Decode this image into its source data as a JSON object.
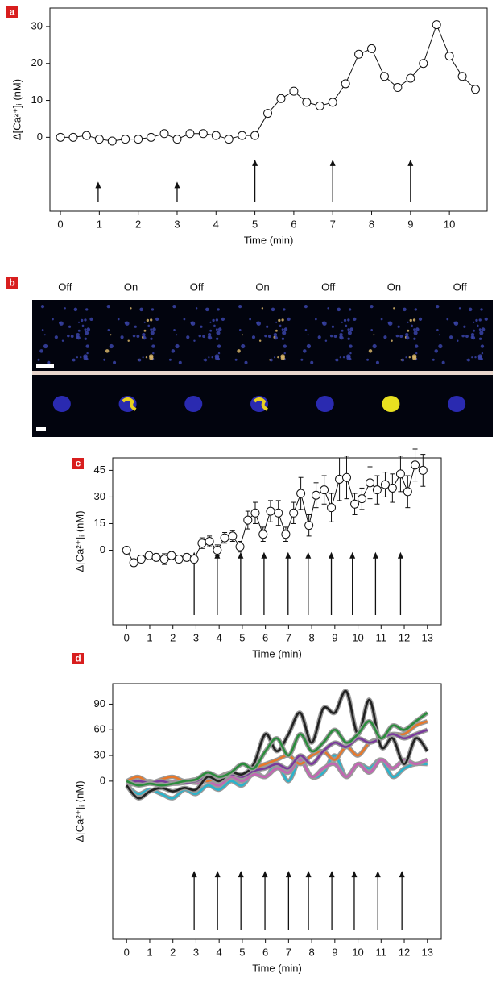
{
  "chart_data": [
    {
      "type": "line",
      "label": "a",
      "x_label": "Time (min)",
      "y_label": "Δ[Ca²⁺]ᵢ (nM)",
      "x": [
        0,
        0.33,
        0.67,
        1,
        1.33,
        1.67,
        2,
        2.33,
        2.67,
        3,
        3.33,
        3.67,
        4,
        4.33,
        4.67,
        5,
        5.33,
        5.67,
        6,
        6.33,
        6.67,
        7,
        7.33,
        7.67,
        8,
        8.33,
        8.67,
        9,
        9.33,
        9.67,
        10,
        10.33,
        10.67
      ],
      "values": [
        0,
        0,
        0.5,
        -0.5,
        -1,
        -0.5,
        -0.5,
        0,
        1,
        -0.5,
        1,
        1,
        0.5,
        -0.5,
        0.5,
        0.5,
        6.5,
        10.5,
        12.5,
        9.5,
        8.5,
        9.5,
        14.5,
        22.5,
        24,
        16.5,
        13.5,
        16,
        20,
        30.5,
        22,
        16.5,
        13
      ],
      "xlim": [
        -0.27,
        10.97
      ],
      "ylim": [
        -20,
        35
      ],
      "xticks": [
        0,
        1,
        2,
        3,
        4,
        5,
        6,
        7,
        8,
        9,
        10
      ],
      "yticks": [
        0,
        10,
        20,
        30
      ],
      "arrows": {
        "x": [
          0.97,
          3,
          5,
          7,
          9
        ],
        "tip": [
          -12,
          -12,
          -6,
          -6,
          -6
        ]
      }
    },
    {
      "type": "image_strip",
      "label": "b",
      "conditions": [
        "Off",
        "On",
        "Off",
        "On",
        "Off",
        "On",
        "Off"
      ]
    },
    {
      "type": "line",
      "label": "c",
      "x_label": "Time (min)",
      "y_label": "Δ[Ca²⁺]ᵢ (nM)",
      "x": [
        0,
        0.31,
        0.63,
        0.97,
        1.28,
        1.63,
        1.94,
        2.26,
        2.6,
        2.92,
        3.26,
        3.58,
        3.92,
        4.24,
        4.58,
        4.9,
        5.24,
        5.56,
        5.9,
        6.22,
        6.56,
        6.88,
        7.22,
        7.53,
        7.88,
        8.19,
        8.54,
        8.85,
        9.2,
        9.51,
        9.86,
        10.17,
        10.52,
        10.83,
        11.18,
        11.49,
        11.84,
        12.15,
        12.47,
        12.81
      ],
      "values": [
        0,
        -7,
        -5,
        -3,
        -4,
        -5,
        -3,
        -5,
        -4,
        -5,
        4,
        5,
        0,
        7,
        8,
        2,
        17,
        21,
        9,
        22,
        21,
        9,
        21,
        32,
        14,
        31,
        34,
        24,
        40,
        41,
        26,
        29,
        38,
        34,
        37,
        35,
        43,
        33,
        48,
        45
      ],
      "errors": [
        2,
        2,
        2,
        2,
        2,
        3,
        2,
        2,
        2,
        2,
        3,
        3,
        3,
        3,
        3,
        3,
        5,
        6,
        4,
        6,
        7,
        4,
        6,
        9,
        6,
        7,
        8,
        8,
        12,
        12,
        6,
        6,
        9,
        8,
        7,
        8,
        10,
        9,
        9,
        9
      ],
      "xlim": [
        -0.6,
        13.6
      ],
      "ylim": [
        -42,
        52
      ],
      "xticks": [
        0,
        1,
        2,
        3,
        4,
        5,
        6,
        7,
        8,
        9,
        10,
        11,
        12,
        13
      ],
      "yticks": [
        0,
        15,
        30,
        45
      ],
      "arrows": {
        "x": [
          2.92,
          3.92,
          4.93,
          5.94,
          6.98,
          7.85,
          8.85,
          9.76,
          10.76,
          11.84
        ],
        "tip": [
          -1,
          -1,
          -1,
          -1,
          -1,
          -1,
          -1,
          -1,
          -1,
          -1
        ]
      }
    },
    {
      "type": "line",
      "label": "d",
      "x_label": "Time (min)",
      "y_label": "Δ[Ca²⁺]ᵢ (nM)",
      "x": [
        0,
        0.5,
        1,
        1.5,
        2,
        2.5,
        3,
        3.5,
        4,
        4.5,
        5,
        5.5,
        6,
        6.5,
        7,
        7.5,
        8,
        8.5,
        9,
        9.5,
        10,
        10.5,
        11,
        11.5,
        12,
        12.5,
        13
      ],
      "series": [
        {
          "color": "#2ab4cc",
          "values": [
            -5,
            -15,
            -10,
            -15,
            -20,
            -10,
            -15,
            -5,
            -10,
            0,
            -5,
            10,
            5,
            20,
            0,
            25,
            5,
            10,
            30,
            5,
            20,
            15,
            25,
            5,
            15,
            20,
            20
          ]
        },
        {
          "color": "#c464b4",
          "values": [
            -5,
            -2,
            0,
            -3,
            -1,
            0,
            -2,
            0,
            -5,
            5,
            0,
            8,
            5,
            15,
            10,
            25,
            5,
            15,
            20,
            5,
            20,
            10,
            25,
            15,
            25,
            20,
            25
          ]
        },
        {
          "color": "#e8782a",
          "values": [
            0,
            5,
            -2,
            2,
            5,
            0,
            2,
            0,
            5,
            10,
            5,
            15,
            20,
            25,
            30,
            20,
            30,
            35,
            25,
            40,
            30,
            45,
            50,
            55,
            55,
            65,
            70
          ]
        },
        {
          "color": "#7a3a9c",
          "values": [
            -2,
            0,
            -2,
            0,
            -3,
            -2,
            0,
            5,
            0,
            8,
            5,
            12,
            15,
            20,
            15,
            30,
            20,
            35,
            45,
            40,
            50,
            45,
            50,
            55,
            50,
            55,
            60
          ]
        },
        {
          "color": "#222222",
          "values": [
            -5,
            -20,
            -12,
            -8,
            -12,
            -8,
            -10,
            5,
            0,
            10,
            8,
            20,
            55,
            35,
            55,
            80,
            45,
            85,
            80,
            105,
            55,
            95,
            40,
            50,
            20,
            50,
            35
          ]
        },
        {
          "color": "#2a8c3c",
          "values": [
            0,
            -5,
            -3,
            -5,
            -3,
            0,
            2,
            10,
            5,
            10,
            20,
            15,
            35,
            50,
            30,
            55,
            35,
            45,
            60,
            45,
            55,
            70,
            50,
            65,
            60,
            70,
            80
          ]
        }
      ],
      "xlim": [
        -0.6,
        13.6
      ],
      "ylim": [
        -185,
        114
      ],
      "xticks": [
        0,
        1,
        2,
        3,
        4,
        5,
        6,
        7,
        8,
        9,
        10,
        11,
        12,
        13
      ],
      "yticks": [
        0,
        30,
        60,
        90
      ],
      "arrows": {
        "x": [
          2.92,
          3.93,
          4.94,
          5.98,
          7,
          7.86,
          8.87,
          9.84,
          10.86,
          11.9
        ],
        "tip": [
          -105,
          -105,
          -105,
          -105,
          -105,
          -105,
          -105,
          -105,
          -105,
          -105
        ]
      }
    }
  ]
}
